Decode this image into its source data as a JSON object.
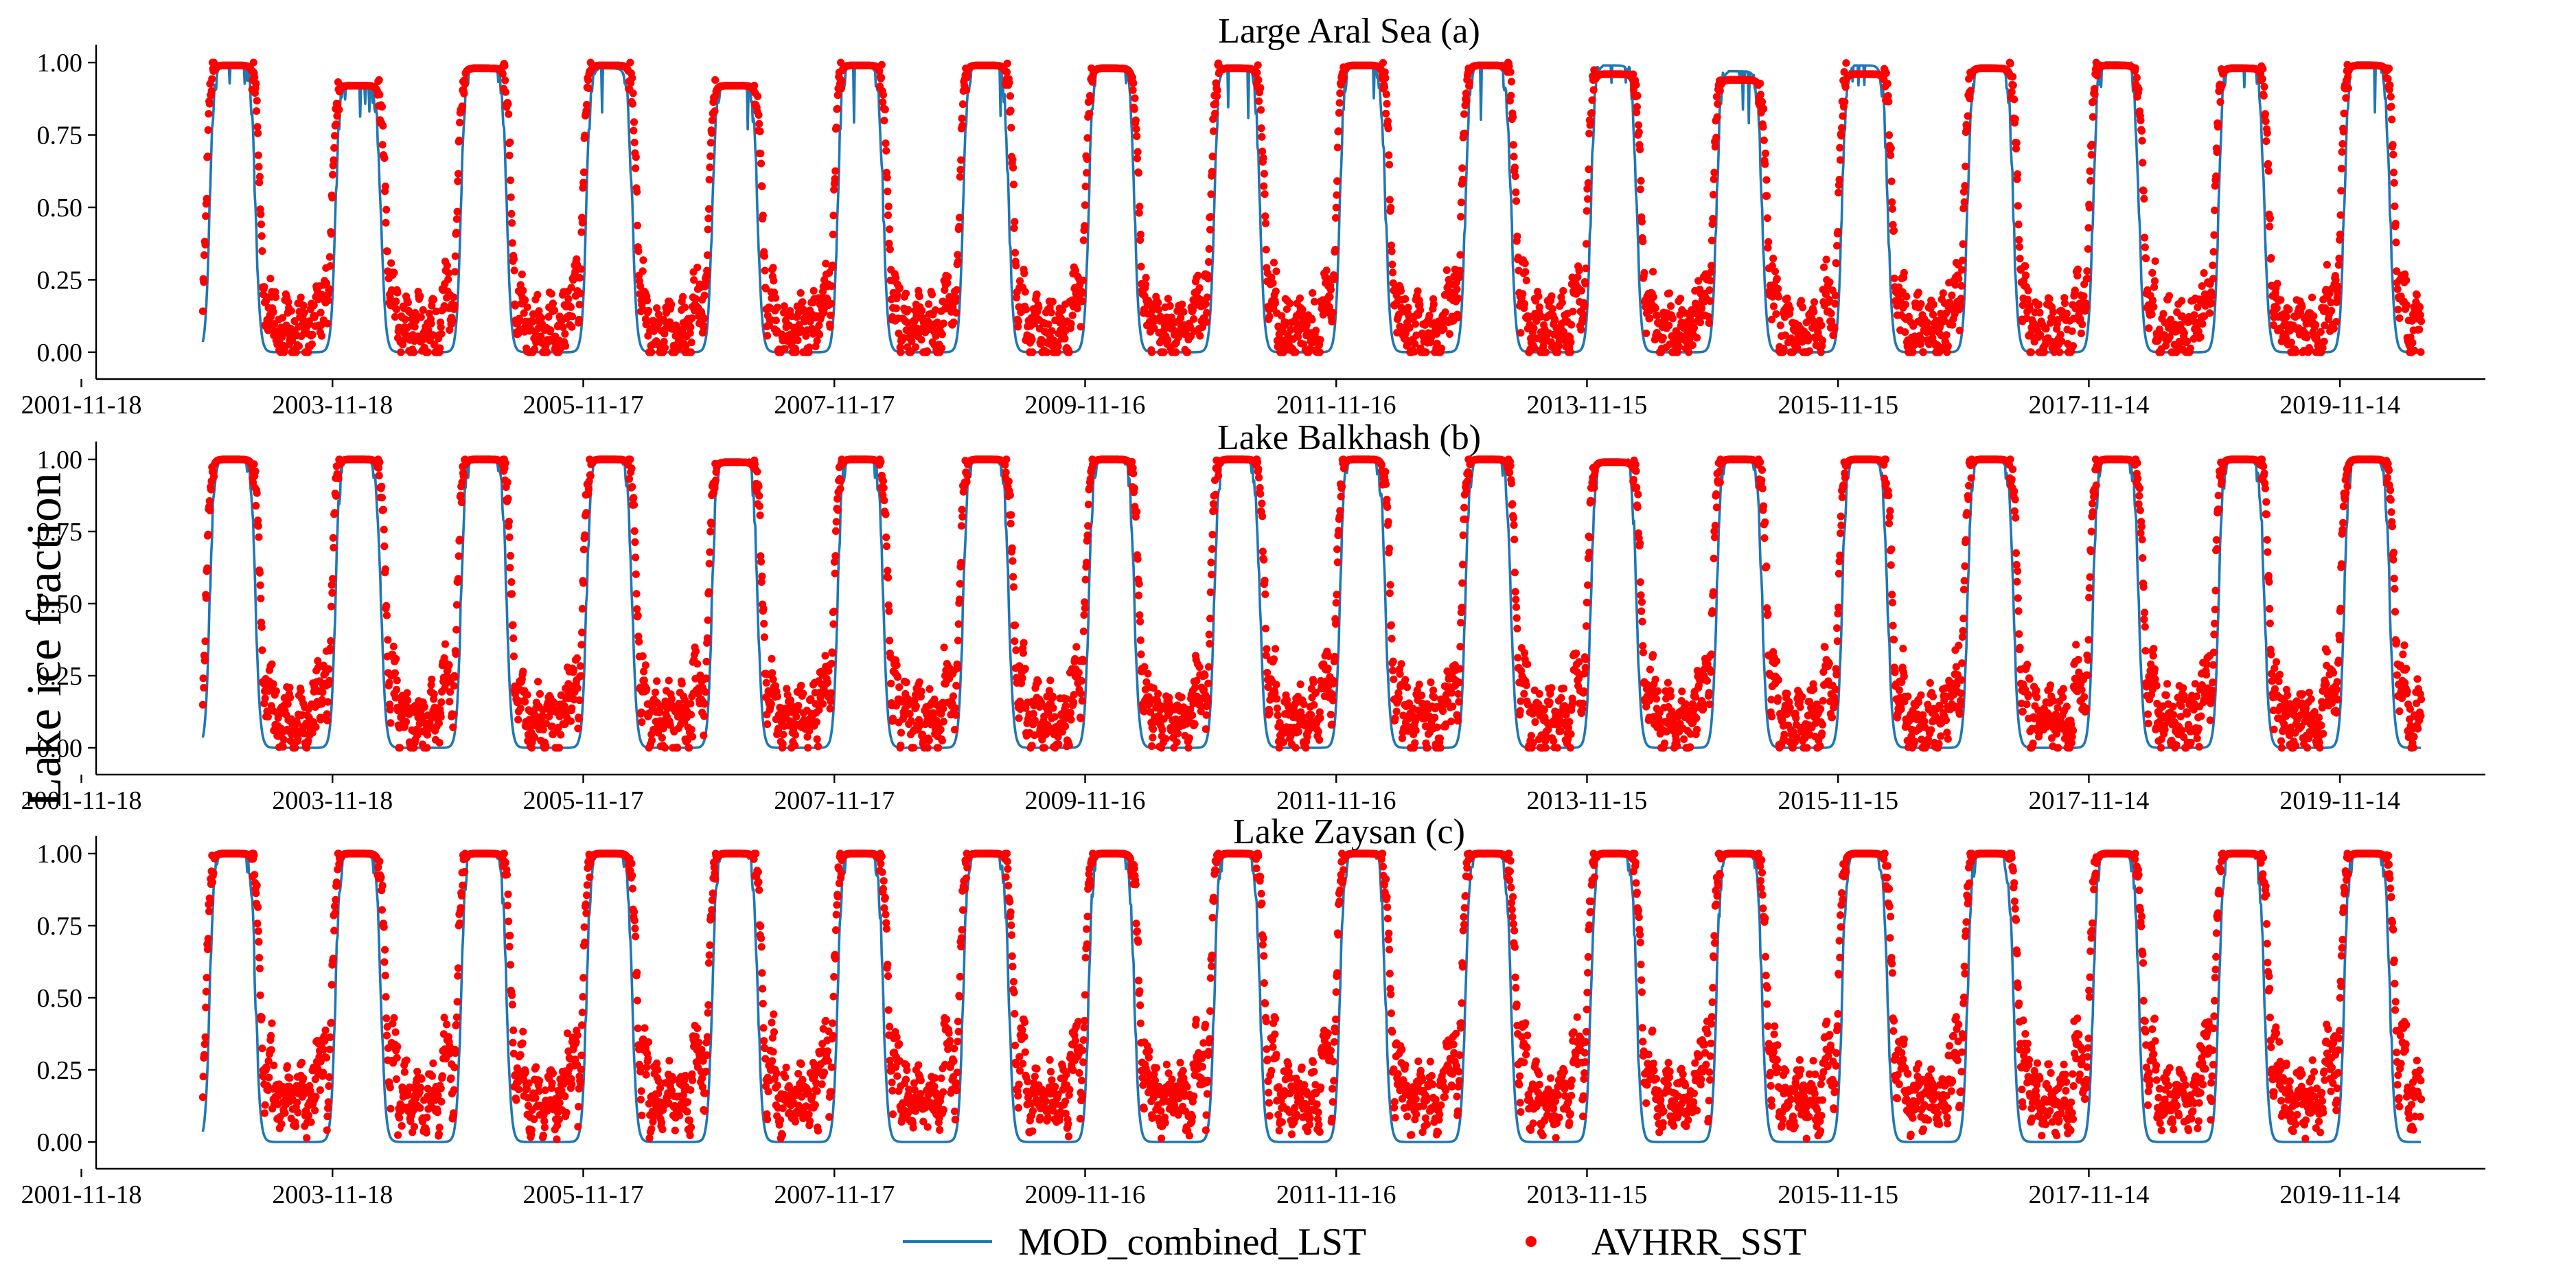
{
  "chart_data": {
    "type": "line",
    "ylabel": "Lake ice fraction",
    "xlim": [
      2002.0,
      2021.03
    ],
    "time_span": [
      2002.85,
      2020.52
    ],
    "x_tick_labels": [
      "2001-11-18",
      "2003-11-18",
      "2005-11-17",
      "2007-11-17",
      "2009-11-16",
      "2011-11-16",
      "2013-11-15",
      "2015-11-15",
      "2017-11-14",
      "2019-11-14"
    ],
    "y_tick_labels": [
      "0.00",
      "0.25",
      "0.50",
      "0.75",
      "1.00"
    ],
    "y_ticks": [
      0,
      0.25,
      0.5,
      0.75,
      1.0
    ],
    "ylim": [
      -0.05,
      1.05
    ],
    "legend": {
      "location": "bottom-center",
      "entries": [
        {
          "label": "MOD_combined_LST",
          "marker": "line",
          "color": "#1f77b4"
        },
        {
          "label": "AVHRR_SST",
          "marker": "dot",
          "color": "#ff0000"
        }
      ]
    },
    "series_styles": [
      {
        "name": "MOD_combined_LST",
        "style": "line",
        "color": "#1f77b4"
      },
      {
        "name": "AVHRR_SST",
        "style": "scatter",
        "color": "#ff0000"
      }
    ],
    "panels": [
      {
        "title": "Large Aral Sea (a)",
        "winter_peaks": {
          "MOD_combined_LST": [
            0.99,
            0.92,
            0.99,
            0.98,
            0.92,
            0.99,
            0.99,
            0.99,
            0.99,
            0.99,
            0.99,
            0.99,
            0.97,
            0.99,
            0.99,
            1.0,
            0.99,
            1.0
          ],
          "AVHRR_SST": [
            0.99,
            0.92,
            0.98,
            0.99,
            0.92,
            0.99,
            0.99,
            0.98,
            0.98,
            0.99,
            0.99,
            0.96,
            0.94,
            0.96,
            0.98,
            0.99,
            0.98,
            0.99
          ]
        },
        "summer_baseline": {
          "MOD_combined_LST": 0.0,
          "AVHRR_SST": 0.08
        }
      },
      {
        "title": "Lake Balkhash (b)",
        "winter_peaks": {
          "MOD_combined_LST": [
            1.0,
            1.0,
            1.0,
            1.0,
            1.0,
            1.0,
            1.0,
            1.0,
            1.0,
            1.0,
            1.0,
            1.0,
            1.0,
            1.0,
            1.0,
            1.0,
            1.0,
            1.0
          ],
          "AVHRR_SST": [
            1.0,
            1.0,
            1.0,
            1.0,
            0.99,
            1.0,
            1.0,
            1.0,
            1.0,
            1.0,
            1.0,
            0.99,
            1.0,
            1.0,
            1.0,
            1.0,
            1.0,
            1.0
          ]
        },
        "summer_baseline": {
          "MOD_combined_LST": 0.0,
          "AVHRR_SST": 0.12
        }
      },
      {
        "title": "Lake Zaysan (c)",
        "winter_peaks": {
          "MOD_combined_LST": [
            1.0,
            1.0,
            1.0,
            1.0,
            1.0,
            1.0,
            1.0,
            1.0,
            1.0,
            1.0,
            1.0,
            1.0,
            1.0,
            1.0,
            1.0,
            1.0,
            1.0,
            1.0
          ],
          "AVHRR_SST": [
            1.0,
            1.0,
            1.0,
            1.0,
            1.0,
            1.0,
            1.0,
            1.0,
            1.0,
            1.0,
            1.0,
            1.0,
            1.0,
            1.0,
            1.0,
            1.0,
            1.0,
            1.0
          ]
        },
        "summer_baseline": {
          "MOD_combined_LST": 0.0,
          "AVHRR_SST": 0.2
        }
      }
    ]
  }
}
